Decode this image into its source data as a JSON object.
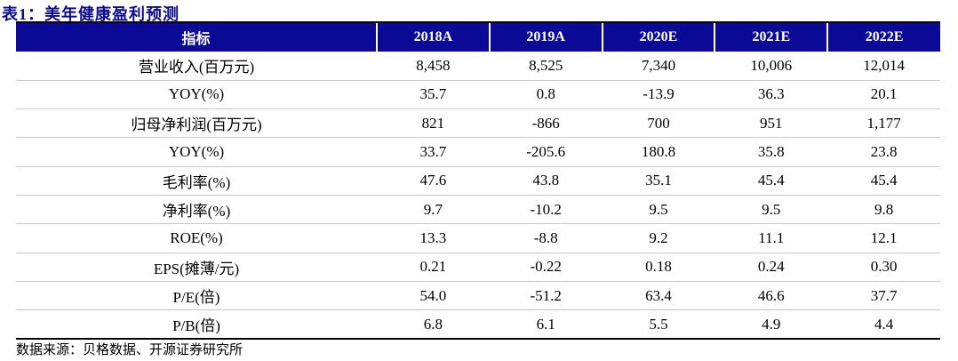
{
  "title": "表1：美年健康盈利预测",
  "table": {
    "headers": [
      "指标",
      "2018A",
      "2019A",
      "2020E",
      "2021E",
      "2022E"
    ],
    "rows": [
      [
        "营业收入(百万元)",
        "8,458",
        "8,525",
        "7,340",
        "10,006",
        "12,014"
      ],
      [
        "YOY(%)",
        "35.7",
        "0.8",
        "-13.9",
        "36.3",
        "20.1"
      ],
      [
        "归母净利润(百万元)",
        "821",
        "-866",
        "700",
        "951",
        "1,177"
      ],
      [
        "YOY(%)",
        "33.7",
        "-205.6",
        "180.8",
        "35.8",
        "23.8"
      ],
      [
        "毛利率(%)",
        "47.6",
        "43.8",
        "35.1",
        "45.4",
        "45.4"
      ],
      [
        "净利率(%)",
        "9.7",
        "-10.2",
        "9.5",
        "9.5",
        "9.8"
      ],
      [
        "ROE(%)",
        "13.3",
        "-8.8",
        "9.2",
        "11.1",
        "12.1"
      ],
      [
        "EPS(摊薄/元)",
        "0.21",
        "-0.22",
        "0.18",
        "0.24",
        "0.30"
      ],
      [
        "P/E(倍)",
        "54.0",
        "-51.2",
        "63.4",
        "46.6",
        "37.7"
      ],
      [
        "P/B(倍)",
        "6.8",
        "6.1",
        "5.5",
        "4.9",
        "4.4"
      ]
    ]
  },
  "source": "数据来源：贝格数据、开源证券研究所",
  "colors": {
    "header_bg": "#0a0a96",
    "title_color": "#0b0b8c"
  }
}
